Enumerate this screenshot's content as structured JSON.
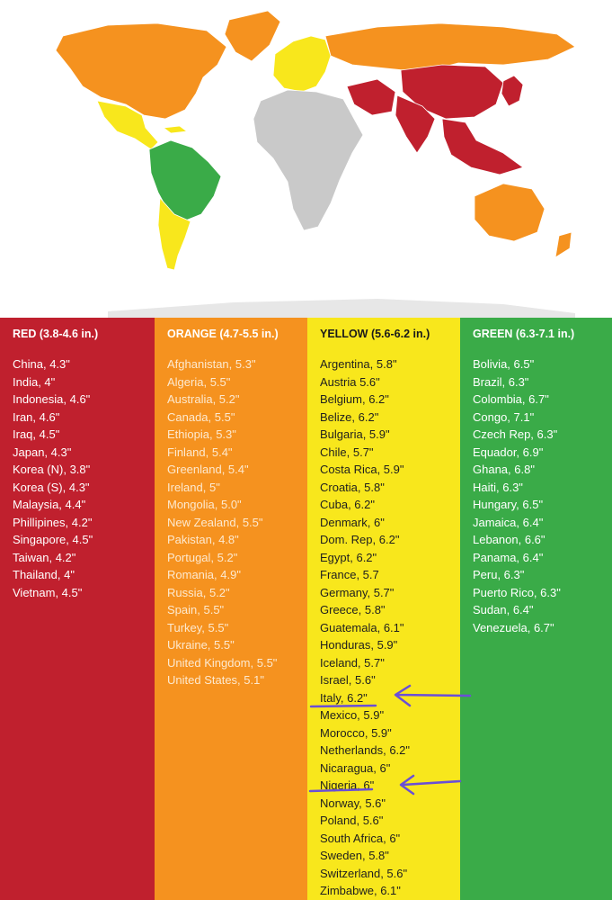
{
  "colors": {
    "red": "#c0202e",
    "orange": "#f5921f",
    "yellow": "#f8e71c",
    "green": "#3aab48",
    "no_data": "#c9c9c9",
    "annotation": "#6a4fd6"
  },
  "map": {
    "regions": [
      {
        "name": "North America",
        "category": "orange"
      },
      {
        "name": "Greenland",
        "category": "orange"
      },
      {
        "name": "Mexico and Central America",
        "category": "yellow"
      },
      {
        "name": "Cuba",
        "category": "yellow"
      },
      {
        "name": "Brazil / northern South America",
        "category": "green"
      },
      {
        "name": "Southern South America",
        "category": "yellow"
      },
      {
        "name": "Europe",
        "category": "yellow"
      },
      {
        "name": "Russia",
        "category": "orange"
      },
      {
        "name": "Middle East / Iran",
        "category": "red"
      },
      {
        "name": "China",
        "category": "red"
      },
      {
        "name": "India",
        "category": "red"
      },
      {
        "name": "Southeast Asia",
        "category": "red"
      },
      {
        "name": "Japan / Korea",
        "category": "red"
      },
      {
        "name": "Australia",
        "category": "orange"
      },
      {
        "name": "New Zealand",
        "category": "orange"
      },
      {
        "name": "Africa",
        "category": "no_data"
      }
    ]
  },
  "columns": [
    {
      "id": "red",
      "header": "RED (3.8-4.6 in.)",
      "items": [
        "China, 4.3\"",
        "India, 4\"",
        "Indonesia, 4.6\"",
        "Iran, 4.6\"",
        "Iraq, 4.5\"",
        "Japan, 4.3\"",
        "Korea (N), 3.8\"",
        "Korea (S), 4.3\"",
        "Malaysia, 4.4\"",
        "Phillipines, 4.2\"",
        "Singapore, 4.5\"",
        "Taiwan, 4.2\"",
        "Thailand, 4\"",
        "Vietnam, 4.5\""
      ]
    },
    {
      "id": "orange",
      "header": "ORANGE (4.7-5.5 in.)",
      "items": [
        "Afghanistan, 5.3\"",
        "Algeria, 5.5\"",
        "Australia, 5.2\"",
        "Canada, 5.5\"",
        "Ethiopia, 5.3\"",
        "Finland, 5.4\"",
        "Greenland, 5.4\"",
        "Ireland, 5\"",
        "Mongolia, 5.0\"",
        "New Zealand, 5.5\"",
        "Pakistan, 4.8\"",
        "Portugal, 5.2\"",
        "Romania, 4.9\"",
        "Russia, 5.2\"",
        "Spain, 5.5\"",
        "Turkey, 5.5\"",
        "Ukraine, 5.5\"",
        "United Kingdom, 5.5\"",
        "United States, 5.1\""
      ]
    },
    {
      "id": "yellow",
      "header": "YELLOW (5.6-6.2 in.)",
      "items": [
        "Argentina, 5.8\"",
        "Austria 5.6\"",
        "Belgium, 6.2\"",
        "Belize, 6.2\"",
        "Bulgaria, 5.9\"",
        "Chile, 5.7\"",
        "Costa Rica, 5.9\"",
        "Croatia, 5.8\"",
        "Cuba, 6.2\"",
        "Denmark, 6\"",
        "Dom. Rep, 6.2\"",
        "Egypt, 6.2\"",
        "France, 5.7",
        "Germany, 5.7\"",
        "Greece, 5.8\"",
        "Guatemala, 6.1\"",
        "Honduras, 5.9\"",
        "Iceland, 5.7\"",
        "Israel, 5.6\"",
        "Italy, 6.2\"",
        "Mexico, 5.9\"",
        "Morocco, 5.9\"",
        "Netherlands, 6.2\"",
        "Nicaragua, 6\"",
        "Nigeria, 6\"",
        "Norway, 5.6\"",
        "Poland, 5.6\"",
        "South Africa, 6\"",
        "Sweden, 5.8\"",
        "Switzerland, 5.6\"",
        "Zimbabwe, 6.1\""
      ]
    },
    {
      "id": "green",
      "header": "GREEN (6.3-7.1 in.)",
      "items": [
        "Bolivia, 6.5\"",
        "Brazil, 6.3\"",
        "Colombia, 6.7\"",
        "Congo, 7.1\"",
        "Czech Rep, 6.3\"",
        "Equador, 6.9\"",
        "Ghana, 6.8\"",
        "Haiti, 6.3\"",
        "Hungary, 6.5\"",
        "Jamaica, 6.4\"",
        "Lebanon, 6.6\"",
        "Panama, 6.4\"",
        "Peru, 6.3\"",
        "Puerto Rico, 6.3\"",
        "Sudan, 6.4\"",
        "Venezuela, 6.7\""
      ]
    }
  ]
}
